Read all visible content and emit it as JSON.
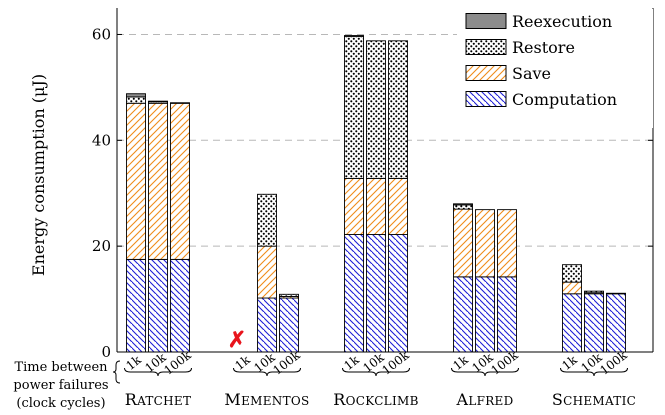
{
  "chart_data": {
    "type": "bar",
    "stacked": true,
    "ylabel": "Energy consumption (μJ)",
    "ylim": [
      0,
      65
    ],
    "yticks": [
      0,
      20,
      40,
      60
    ],
    "grid": "horizontal dashed",
    "legend_position": "top-right",
    "xaxis_title": [
      "Time between",
      "power failures",
      "(clock cycles)"
    ],
    "layers": [
      "Computation",
      "Save",
      "Restore",
      "Reexecution"
    ],
    "legend": [
      {
        "name": "Reexecution",
        "layer": "Reexecution"
      },
      {
        "name": "Restore",
        "layer": "Restore"
      },
      {
        "name": "Save",
        "layer": "Save"
      },
      {
        "name": "Computation",
        "layer": "Computation"
      }
    ],
    "colors": {
      "Computation": "#1f1fd6",
      "Save": "#f08c1a",
      "Restore": "#000000",
      "Reexecution": "#8c8c8c",
      "fail": "#e8141c"
    },
    "groups": [
      {
        "name": "RATCHET",
        "bars": [
          {
            "label": "1k",
            "Computation": 17.5,
            "Save": 29.5,
            "Restore": 1.2,
            "Reexecution": 0.6
          },
          {
            "label": "10k",
            "Computation": 17.5,
            "Save": 29.5,
            "Restore": 0.3,
            "Reexecution": 0.1
          },
          {
            "label": "100k",
            "Computation": 17.5,
            "Save": 29.5,
            "Restore": 0.1,
            "Reexecution": 0.0
          }
        ]
      },
      {
        "name": "MEMENTOS",
        "bars": [
          {
            "label": "1k",
            "failed": true,
            "fail_mark": "✗"
          },
          {
            "label": "10k",
            "Computation": 10.2,
            "Save": 9.8,
            "Restore": 9.8,
            "Reexecution": 0.0
          },
          {
            "label": "100k",
            "Computation": 10.2,
            "Save": 0.3,
            "Restore": 0.4,
            "Reexecution": 0.0
          }
        ]
      },
      {
        "name": "ROCKCLIMB",
        "bars": [
          {
            "label": "1k",
            "Computation": 22.2,
            "Save": 10.6,
            "Restore": 26.8,
            "Reexecution": 0.2
          },
          {
            "label": "10k",
            "Computation": 22.2,
            "Save": 10.6,
            "Restore": 26.0,
            "Reexecution": 0.0
          },
          {
            "label": "100k",
            "Computation": 22.2,
            "Save": 10.6,
            "Restore": 26.0,
            "Reexecution": 0.0
          }
        ]
      },
      {
        "name": "ALFRED",
        "bars": [
          {
            "label": "1k",
            "Computation": 14.2,
            "Save": 12.8,
            "Restore": 0.8,
            "Reexecution": 0.2
          },
          {
            "label": "10k",
            "Computation": 14.2,
            "Save": 12.7,
            "Restore": 0.0,
            "Reexecution": 0.0
          },
          {
            "label": "100k",
            "Computation": 14.2,
            "Save": 12.7,
            "Restore": 0.0,
            "Reexecution": 0.0
          }
        ]
      },
      {
        "name": "SCHEMATIC",
        "bars": [
          {
            "label": "1k",
            "Computation": 11.0,
            "Save": 2.2,
            "Restore": 3.3,
            "Reexecution": 0.0
          },
          {
            "label": "10k",
            "Computation": 11.0,
            "Save": 0.2,
            "Restore": 0.3,
            "Reexecution": 0.0
          },
          {
            "label": "100k",
            "Computation": 11.0,
            "Save": 0.0,
            "Restore": 0.1,
            "Reexecution": 0.0
          }
        ]
      }
    ]
  }
}
